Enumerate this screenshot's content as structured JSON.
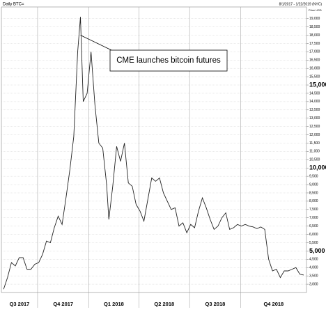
{
  "chart_data": {
    "type": "line",
    "title": "Daily BTC=",
    "date_range": "8/1/2017 - 1/22/2019 (NYC)",
    "y_label": "Price USD",
    "color": "#222222",
    "grid": true,
    "y_axis_side": "right",
    "xlim": [
      "2017-07-28",
      "2019-01-27"
    ],
    "xticks": [
      {
        "value": "2017-07-01",
        "label": "Q3 2017"
      },
      {
        "value": "2017-10-01",
        "label": "Q4 2017"
      },
      {
        "value": "2018-01-01",
        "label": "Q1 2018"
      },
      {
        "value": "2018-04-01",
        "label": "Q2 2018"
      },
      {
        "value": "2018-07-01",
        "label": "Q3 2018"
      },
      {
        "value": "2018-10-01",
        "label": "Q4 2018"
      }
    ],
    "ylim": [
      2500,
      19700
    ],
    "yticks": [
      {
        "value": 3000,
        "label": "3,000"
      },
      {
        "value": 3500,
        "label": "3,500"
      },
      {
        "value": 4000,
        "label": "4,000"
      },
      {
        "value": 4500,
        "label": "4,500"
      },
      {
        "value": 5000,
        "label": "5,000"
      },
      {
        "value": 5500,
        "label": "5,500"
      },
      {
        "value": 6000,
        "label": "6,000"
      },
      {
        "value": 6500,
        "label": "6,500"
      },
      {
        "value": 7000,
        "label": "7,000"
      },
      {
        "value": 7500,
        "label": "7,500"
      },
      {
        "value": 8000,
        "label": "8,000"
      },
      {
        "value": 8500,
        "label": "8,500"
      },
      {
        "value": 9000,
        "label": "9,000"
      },
      {
        "value": 9500,
        "label": "9,500"
      },
      {
        "value": 10000,
        "label": "10,000"
      },
      {
        "value": 10500,
        "label": "10,500"
      },
      {
        "value": 11000,
        "label": "11,000"
      },
      {
        "value": 11500,
        "label": "11,500"
      },
      {
        "value": 12000,
        "label": "12,000"
      },
      {
        "value": 12500,
        "label": "12,500"
      },
      {
        "value": 13000,
        "label": "13,000"
      },
      {
        "value": 13500,
        "label": "13,500"
      },
      {
        "value": 14000,
        "label": "14,000"
      },
      {
        "value": 14500,
        "label": "14,500"
      },
      {
        "value": 15000,
        "label": "15,000"
      },
      {
        "value": 15500,
        "label": "15,500"
      },
      {
        "value": 16000,
        "label": "16,000"
      },
      {
        "value": 16500,
        "label": "16,500"
      },
      {
        "value": 17000,
        "label": "17,000"
      },
      {
        "value": 17500,
        "label": "17,500"
      },
      {
        "value": 18000,
        "label": "18,000"
      },
      {
        "value": 18500,
        "label": "18,500"
      },
      {
        "value": 19000,
        "label": "19,000"
      }
    ],
    "major_yticks": [
      5000,
      10000,
      15000
    ],
    "annotation": {
      "text": "CME launches bitcoin futures",
      "x": "2017-12-17",
      "y": 18000
    },
    "x": [
      "2017-08-01",
      "2017-08-08",
      "2017-08-15",
      "2017-08-22",
      "2017-08-29",
      "2017-09-05",
      "2017-09-12",
      "2017-09-19",
      "2017-09-26",
      "2017-10-03",
      "2017-10-10",
      "2017-10-17",
      "2017-10-24",
      "2017-10-31",
      "2017-11-07",
      "2017-11-14",
      "2017-11-21",
      "2017-11-28",
      "2017-12-05",
      "2017-12-12",
      "2017-12-17",
      "2017-12-22",
      "2017-12-29",
      "2018-01-05",
      "2018-01-12",
      "2018-01-19",
      "2018-01-26",
      "2018-02-02",
      "2018-02-06",
      "2018-02-13",
      "2018-02-20",
      "2018-02-27",
      "2018-03-06",
      "2018-03-13",
      "2018-03-20",
      "2018-03-27",
      "2018-04-03",
      "2018-04-10",
      "2018-04-17",
      "2018-04-24",
      "2018-05-01",
      "2018-05-08",
      "2018-05-15",
      "2018-05-22",
      "2018-05-29",
      "2018-06-05",
      "2018-06-12",
      "2018-06-19",
      "2018-06-26",
      "2018-07-03",
      "2018-07-10",
      "2018-07-17",
      "2018-07-24",
      "2018-07-31",
      "2018-08-07",
      "2018-08-14",
      "2018-08-21",
      "2018-08-28",
      "2018-09-04",
      "2018-09-11",
      "2018-09-18",
      "2018-09-25",
      "2018-10-02",
      "2018-10-09",
      "2018-10-16",
      "2018-10-23",
      "2018-10-30",
      "2018-11-06",
      "2018-11-13",
      "2018-11-20",
      "2018-11-27",
      "2018-12-04",
      "2018-12-11",
      "2018-12-18",
      "2018-12-25",
      "2019-01-01",
      "2019-01-08",
      "2019-01-15",
      "2019-01-22"
    ],
    "values": [
      2700,
      3400,
      4300,
      4100,
      4600,
      4600,
      3900,
      3900,
      4200,
      4300,
      4800,
      5600,
      5500,
      6400,
      7100,
      6600,
      8200,
      9900,
      11900,
      17000,
      19100,
      14000,
      14500,
      17000,
      13800,
      11500,
      11200,
      9000,
      6900,
      8900,
      11300,
      10400,
      11500,
      9100,
      8900,
      7800,
      7400,
      6800,
      8100,
      9400,
      9200,
      9400,
      8500,
      8000,
      7500,
      7600,
      6500,
      6700,
      6100,
      6600,
      6400,
      7400,
      8200,
      7600,
      6900,
      6300,
      6500,
      7000,
      7300,
      6300,
      6400,
      6600,
      6500,
      6600,
      6500,
      6450,
      6350,
      6450,
      6300,
      4500,
      3800,
      3900,
      3400,
      3800,
      3800,
      3900,
      4000,
      3600,
      3550
    ]
  }
}
